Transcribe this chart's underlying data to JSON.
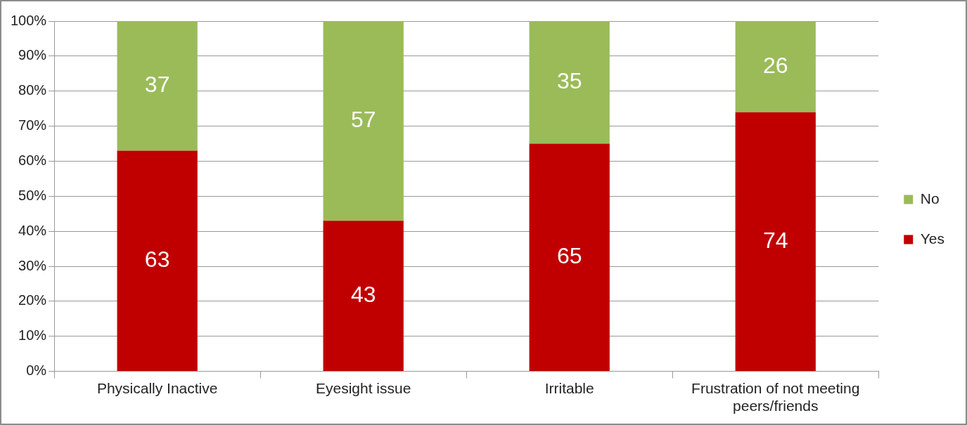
{
  "chart_data": {
    "type": "bar",
    "stacked": true,
    "categories": [
      "Physically Inactive",
      "Eyesight issue",
      "Irritable",
      "Frustration of not meeting peers/friends"
    ],
    "series": [
      {
        "name": "Yes",
        "color": "#c00000",
        "values": [
          63,
          43,
          65,
          74
        ]
      },
      {
        "name": "No",
        "color": "#9bbb59",
        "values": [
          37,
          57,
          35,
          26
        ]
      }
    ],
    "ylim": [
      0,
      100
    ],
    "yticks": [
      {
        "value": 0,
        "label": "0%"
      },
      {
        "value": 10,
        "label": "10%"
      },
      {
        "value": 20,
        "label": "20%"
      },
      {
        "value": 30,
        "label": "30%"
      },
      {
        "value": 40,
        "label": "40%"
      },
      {
        "value": 50,
        "label": "50%"
      },
      {
        "value": 60,
        "label": "60%"
      },
      {
        "value": 70,
        "label": "70%"
      },
      {
        "value": 80,
        "label": "80%"
      },
      {
        "value": 90,
        "label": "90%"
      },
      {
        "value": 100,
        "label": "100%"
      }
    ],
    "grid": "y",
    "legend": "right",
    "data_labels": true
  }
}
